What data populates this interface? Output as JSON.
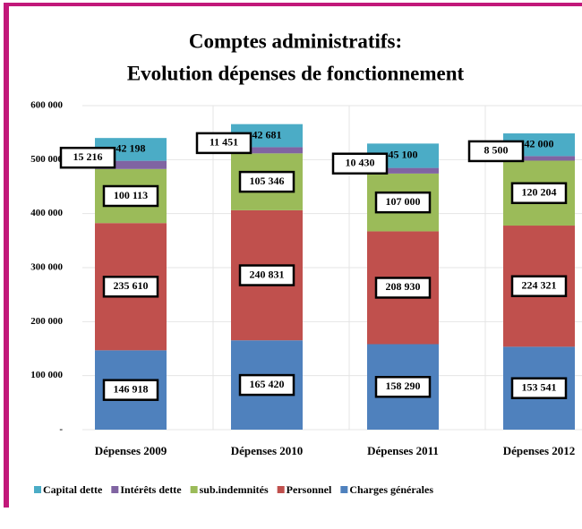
{
  "chart_data": {
    "type": "stacked_bar",
    "title": "Comptes administratifs:",
    "subtitle": "Evolution dépenses de fonctionnement",
    "categories": [
      "Dépenses 2009",
      "Dépenses 2010",
      "Dépenses 2011",
      "Dépenses 2012"
    ],
    "series": [
      {
        "name": "Charges générales",
        "color": "#4f81bd",
        "values": [
          146918,
          165420,
          158290,
          153541
        ],
        "value_labels": [
          "146 918",
          "165 420",
          "158 290",
          "153 541"
        ]
      },
      {
        "name": "Personnel",
        "color": "#c0504d",
        "values": [
          235610,
          240831,
          208930,
          224321
        ],
        "value_labels": [
          "235 610",
          "240 831",
          "208 930",
          "224 321"
        ]
      },
      {
        "name": "sub.indemnités",
        "color": "#9bbb59",
        "values": [
          100113,
          105346,
          107000,
          120204
        ],
        "value_labels": [
          "100 113",
          "105 346",
          "107 000",
          "120 204"
        ]
      },
      {
        "name": "Intérêts dette",
        "color": "#8064a2",
        "values": [
          15216,
          11451,
          10430,
          8500
        ],
        "value_labels": [
          "15 216",
          "11 451",
          "10 430",
          "8 500"
        ]
      },
      {
        "name": "Capital dette",
        "color": "#4bacc6",
        "values": [
          42198,
          42681,
          45100,
          42000
        ],
        "value_labels": [
          "42 198",
          "42 681",
          "45 100",
          "42 000"
        ]
      }
    ],
    "ylim": [
      0,
      600000
    ],
    "yticks": [
      {
        "value": 0,
        "label": "-"
      },
      {
        "value": 100000,
        "label": "100 000"
      },
      {
        "value": 200000,
        "label": "200 000"
      },
      {
        "value": 300000,
        "label": "300 000"
      },
      {
        "value": 400000,
        "label": "400 000"
      },
      {
        "value": 500000,
        "label": "500 000"
      },
      {
        "value": 600000,
        "label": "600 000"
      }
    ],
    "grid": true,
    "legend": "bottom"
  }
}
